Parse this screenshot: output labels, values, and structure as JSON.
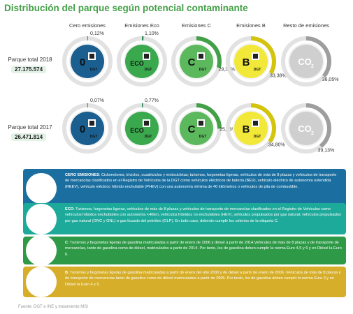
{
  "title": "Distribución del parque según potencial contaminante",
  "columns": [
    "Cero emisiones",
    "Emisiones Eco",
    "Emisiones C",
    "Emisiones B",
    "Resto de emisiones"
  ],
  "rows": [
    {
      "label": "Parque total 2018",
      "total": "27.175.574"
    },
    {
      "label": "Parque total 2017",
      "total": "26.471.814"
    }
  ],
  "chart_data": {
    "type": "pie",
    "title": "Distribución del parque según potencial contaminante",
    "categories": [
      "Cero emisiones",
      "Emisiones Eco",
      "Emisiones C",
      "Emisiones B",
      "Resto de emisiones"
    ],
    "series": [
      {
        "name": "Parque total 2018",
        "values": [
          0.12,
          1.1,
          29.35,
          33.38,
          36.05
        ],
        "labels": [
          "0,12%",
          "1,10%",
          "29,35%",
          "33,38%",
          "36,05%"
        ]
      },
      {
        "name": "Parque total 2017",
        "values": [
          0.07,
          0.77,
          25.23,
          34.8,
          39.13
        ],
        "labels": [
          "0,07%",
          "0,77%",
          "25,23%",
          "34,80%",
          "39,13%"
        ]
      }
    ],
    "colors": [
      "#1a6fa0",
      "#2e8b57",
      "#43a047",
      "#d4c40c",
      "#9e9e9e"
    ],
    "sticker_colors": [
      "#1a5f8f",
      "#3aa84d",
      "#5cb85c",
      "#f2e83a",
      "#cfcfcf"
    ]
  },
  "stickers": {
    "zero": "0",
    "eco": "ECO",
    "c": "C",
    "b": "B",
    "co2": "CO",
    "co2_sub": "2",
    "dgt": "DGT"
  },
  "legend": [
    {
      "key": "CERO EMISIONES",
      "color": "#1a6fa0",
      "text": ": Ciclomotores, triciclos, cuadriciclos y motocicletas; turismos, furgonetas ligeras, vehículos de más de 8 plazas y vehículos de transporte de mercancías clasificados en el Registro de Vehículos de la DGT como vehículos eléctricos de batería (BEV), vehículo eléctrico de autonomía extendida (REEV), vehículo eléctrico híbrido enchufable (PHEV) con una autonomía mínima de 40 kilómetros o vehículos de pila de combustible."
    },
    {
      "key": "ECO",
      "color": "#1eaa9b",
      "text": ": Turismos, furgonetas ligeras, vehículos de más de 8 plazas y vehículos de transporte de mercancías clasificados en el Registro de Vehículos como vehículos híbridos enchufables con autonomía <40km, vehículos híbridos no enchufables (HEV), vehículos propulsados por gas natural, vehículos propulsados por gas natural  (GNC y GNL) o  gas licuado del petróleo (GLP). En todo caso, deberán cumplir los criterios de la etiqueta C."
    },
    {
      "key": "C",
      "color": "#2e9a47",
      "text": ": Turismos y furgonetas ligeras de gasolina matriculadas a partir de enero de 2006 y diésel a partir de 2014.Vehículos de más de 8 plazas y de transporte de mercancías, tanto de gasolina como de diésel,  matriculados a partir de 2014. Por tanto, los de gasolina deben cumplir la norma Euro 4,5 y 6 y en Diésel  la Euro 6."
    },
    {
      "key": "B",
      "color": "#d6ae2a",
      "text": ": Turismos y furgonetas ligeras de gasolina matriculadas a partir de enero del año 2000 y de diésel a partir de enero de 2006. Vehículos de más de 8 plazas y de transporte de mercancías tanto de gasolina como de diésel matriculados a partir de 2005. Por tanto, los de gasolina deben cumplir la norma Euro 3 y en Diésel  la Euro 4 y 5."
    }
  ],
  "source": "Fuente: DGT e INE y tratamiento MSI"
}
